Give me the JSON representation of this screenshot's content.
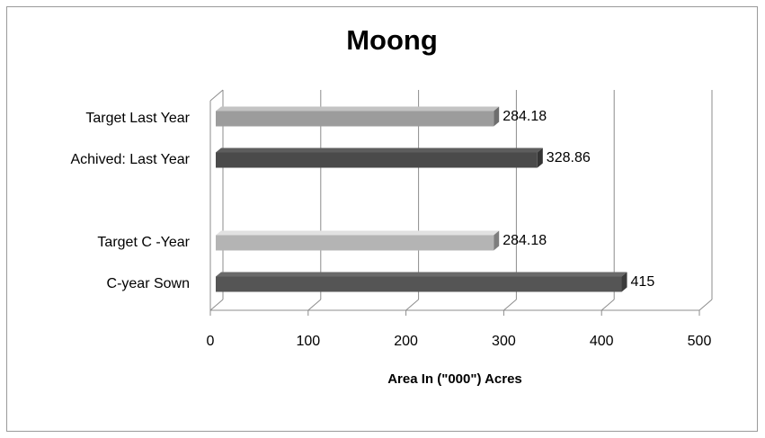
{
  "chart_data": {
    "type": "bar3d-horizontal",
    "title": "Moong",
    "x_label": "Area In (\"000\") Acres",
    "categories": [
      "Target  Last Year",
      "Achived: Last Year",
      null,
      "Target  C -Year",
      "C-year Sown"
    ],
    "values": [
      284.18,
      328.86,
      null,
      284.18,
      415
    ],
    "colors": [
      "#9c9c9c",
      "#4a4a4a",
      null,
      "#b4b4b4",
      "#555555"
    ],
    "xlim": [
      0,
      500
    ],
    "xticks": [
      0,
      100,
      200,
      300,
      400,
      500
    ],
    "grid": true
  }
}
